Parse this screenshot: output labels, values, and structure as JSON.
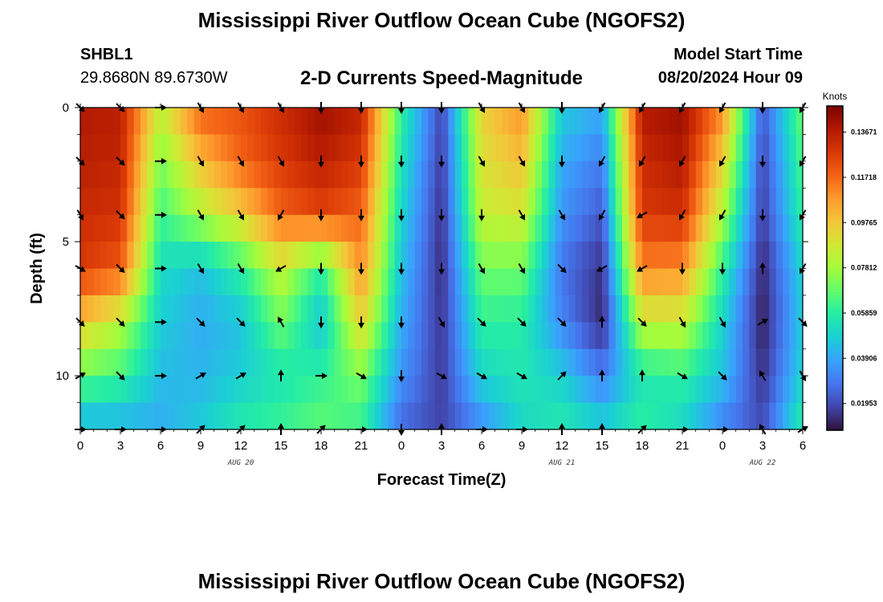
{
  "header": {
    "main_title": "Mississippi River Outflow Ocean Cube (NGOFS2)",
    "station_id": "SHBL1",
    "station_coords": "29.8680N  89.6730W",
    "subtitle": "2-D Currents Speed-Magnitude",
    "model_start_label": "Model Start Time",
    "model_start_value": "08/20/2024 Hour 09"
  },
  "footer": {
    "second_title": "Mississippi River Outflow Ocean Cube (NGOFS2)"
  },
  "chart_data": {
    "type": "heatmap",
    "title": "2-D Currents Speed-Magnitude",
    "xlabel": "Forecast Time(Z)",
    "ylabel": "Depth (ft)",
    "x_range_hours": [
      0,
      54
    ],
    "ylim": [
      0,
      12
    ],
    "y_inverted": true,
    "x_tick_labels": [
      "0",
      "3",
      "6",
      "9",
      "12",
      "15",
      "18",
      "21",
      "0",
      "3",
      "6",
      "9",
      "12",
      "15",
      "18",
      "21",
      "0",
      "3",
      "6"
    ],
    "y_tick_labels": [
      "0",
      "5",
      "10"
    ],
    "y_tick_values": [
      0,
      5,
      10
    ],
    "date_labels": [
      {
        "label": "AUG 20",
        "hour": 12
      },
      {
        "label": "AUG 21",
        "hour": 36
      },
      {
        "label": "AUG 22",
        "hour": 51
      }
    ],
    "colorbar": {
      "units": "Knots",
      "range": [
        0.008,
        0.148
      ],
      "tick_labels": [
        "0.13671",
        "0.11718",
        "0.09765",
        "0.07812",
        "0.05859",
        "0.03906",
        "0.01953"
      ],
      "tick_values": [
        0.13671,
        0.11718,
        0.09765,
        0.07812,
        0.05859,
        0.03906,
        0.01953
      ],
      "colors": [
        "#30123b",
        "#4145ab",
        "#4675ed",
        "#39a2fc",
        "#1bcfd4",
        "#24eca6",
        "#61fc6c",
        "#a4fc3b",
        "#d1e834",
        "#f3c63a",
        "#fe9b2d",
        "#f36315",
        "#d93806",
        "#b11901",
        "#7a0403"
      ]
    },
    "depths_ft": [
      0,
      2,
      4,
      6,
      8,
      10,
      12
    ],
    "times_hours": [
      0,
      3,
      6,
      9,
      12,
      15,
      18,
      21,
      24,
      27,
      30,
      33,
      36,
      39,
      42,
      45,
      48,
      51,
      54
    ],
    "speed_knots": [
      [
        0.138,
        0.136,
        0.085,
        0.12,
        0.122,
        0.132,
        0.142,
        0.135,
        0.06,
        0.018,
        0.095,
        0.11,
        0.048,
        0.04,
        0.138,
        0.142,
        0.112,
        0.022,
        0.07
      ],
      [
        0.136,
        0.134,
        0.072,
        0.1,
        0.118,
        0.128,
        0.136,
        0.128,
        0.055,
        0.016,
        0.09,
        0.1,
        0.04,
        0.03,
        0.132,
        0.138,
        0.095,
        0.018,
        0.065
      ],
      [
        0.132,
        0.13,
        0.062,
        0.08,
        0.095,
        0.118,
        0.125,
        0.118,
        0.05,
        0.014,
        0.085,
        0.088,
        0.035,
        0.022,
        0.128,
        0.13,
        0.08,
        0.016,
        0.06
      ],
      [
        0.128,
        0.12,
        0.052,
        0.045,
        0.06,
        0.085,
        0.06,
        0.11,
        0.045,
        0.013,
        0.07,
        0.07,
        0.028,
        0.014,
        0.112,
        0.11,
        0.06,
        0.012,
        0.05
      ],
      [
        0.098,
        0.082,
        0.048,
        0.04,
        0.045,
        0.07,
        0.045,
        0.095,
        0.04,
        0.015,
        0.06,
        0.058,
        0.032,
        0.012,
        0.085,
        0.085,
        0.05,
        0.01,
        0.048
      ],
      [
        0.068,
        0.062,
        0.044,
        0.042,
        0.048,
        0.055,
        0.06,
        0.072,
        0.035,
        0.016,
        0.05,
        0.056,
        0.048,
        0.03,
        0.055,
        0.06,
        0.045,
        0.014,
        0.05
      ],
      [
        0.04,
        0.04,
        0.04,
        0.048,
        0.058,
        0.062,
        0.068,
        0.06,
        0.025,
        0.018,
        0.032,
        0.05,
        0.058,
        0.05,
        0.06,
        0.05,
        0.03,
        0.02,
        0.06
      ]
    ],
    "current_direction_deg": [
      [
        135,
        135,
        90,
        150,
        150,
        150,
        180,
        180,
        180,
        180,
        150,
        150,
        180,
        210,
        210,
        210,
        210,
        180,
        210
      ],
      [
        135,
        135,
        90,
        150,
        150,
        150,
        180,
        180,
        180,
        180,
        150,
        150,
        180,
        210,
        210,
        210,
        210,
        180,
        210
      ],
      [
        150,
        135,
        90,
        150,
        150,
        210,
        180,
        180,
        180,
        180,
        180,
        150,
        150,
        210,
        240,
        210,
        210,
        180,
        210
      ],
      [
        120,
        135,
        90,
        150,
        150,
        240,
        180,
        180,
        180,
        180,
        150,
        150,
        135,
        240,
        240,
        180,
        180,
        0,
        210
      ],
      [
        135,
        135,
        90,
        135,
        135,
        330,
        180,
        180,
        180,
        150,
        135,
        135,
        135,
        0,
        135,
        150,
        150,
        60,
        135
      ],
      [
        60,
        135,
        90,
        60,
        60,
        0,
        90,
        120,
        180,
        120,
        120,
        120,
        45,
        0,
        0,
        120,
        135,
        330,
        150
      ],
      [
        90,
        90,
        90,
        45,
        45,
        0,
        45,
        90,
        180,
        0,
        90,
        90,
        0,
        0,
        45,
        90,
        90,
        330,
        60
      ]
    ]
  }
}
